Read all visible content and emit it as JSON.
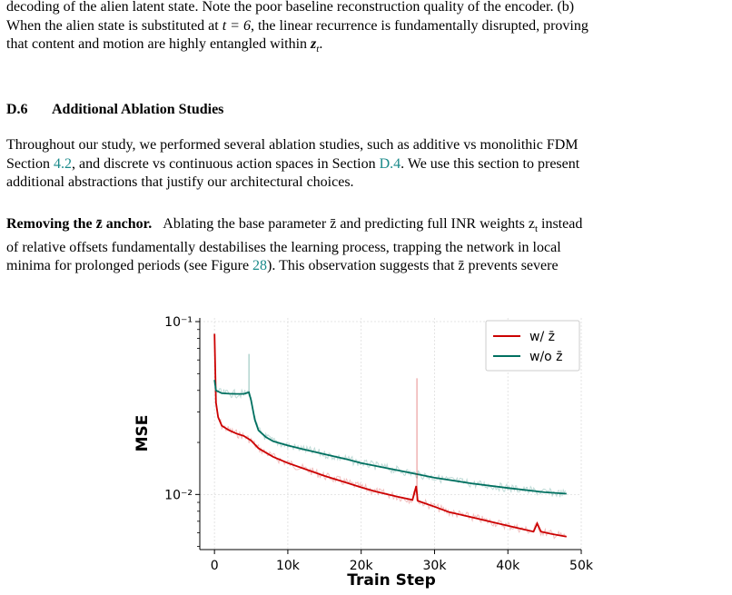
{
  "top_paragraph": {
    "line1": "decoding of the alien latent state. Note the poor baseline reconstruction quality of the encoder. (b)",
    "line2_a": "When the alien state is substituted at ",
    "line2_math": "t = 6",
    "line2_b": ", the linear recurrence is fundamentally disrupted, proving",
    "line3_a": "that content and motion are highly entangled within ",
    "line3_math": "z",
    "line3_sub": "t",
    "line3_b": "."
  },
  "section": {
    "number": "D.6",
    "title": "Additional Ablation Studies"
  },
  "paragraph_ablation": {
    "line1": "Throughout our study, we performed several ablation studies, such as additive vs monolithic FDM",
    "line2_a": "Section ",
    "line2_ref1": "4.2",
    "line2_b": ", and discrete vs continuous action spaces in Section ",
    "line2_ref2": "D.4",
    "line2_c": ". We use this section to present",
    "line3": "additional abstractions that justify our architectural choices."
  },
  "paragraph_anchor": {
    "bold_title": "Removing the z̄ anchor.",
    "line1_rest": "Ablating the base parameter z̄ and predicting full INR weights z",
    "line1_sub": "t",
    "line1_end": " instead",
    "line2": "of relative offsets fundamentally destabilises the learning process, trapping the network in local",
    "line3_a": "minima for prolonged periods (see Figure ",
    "line3_ref": "28",
    "line3_b": "). This observation suggests that z̄ prevents severe"
  },
  "chart_data": {
    "type": "line",
    "xlabel": "Train Step",
    "ylabel": "MSE",
    "yscale": "log",
    "xlim": [
      -2000,
      50000
    ],
    "ylim": [
      0.0048,
      0.105
    ],
    "x_ticks": [
      0,
      10000,
      20000,
      30000,
      40000,
      50000
    ],
    "x_tick_labels": [
      "0",
      "10k",
      "20k",
      "30k",
      "40k",
      "50k"
    ],
    "y_ticks": [
      0.01,
      0.1
    ],
    "y_tick_labels": [
      "10⁻²",
      "10⁻¹"
    ],
    "grid": true,
    "legend_position": "top-right",
    "series": [
      {
        "name": "w/ z̄",
        "color": "#cc0000",
        "x": [
          0,
          200,
          500,
          1000,
          2000,
          3000,
          4000,
          5000,
          6000,
          8000,
          10000,
          12000,
          15000,
          18000,
          20000,
          22000,
          25000,
          27000,
          27500,
          27700,
          28000,
          30000,
          32000,
          35000,
          38000,
          40000,
          42000,
          43500,
          44000,
          44500,
          46000,
          48000
        ],
        "y": [
          0.085,
          0.034,
          0.028,
          0.025,
          0.0235,
          0.0225,
          0.0218,
          0.0205,
          0.0185,
          0.0165,
          0.0152,
          0.0142,
          0.0128,
          0.0117,
          0.011,
          0.0104,
          0.0097,
          0.0093,
          0.0112,
          0.0092,
          0.0091,
          0.0085,
          0.0079,
          0.0074,
          0.0069,
          0.0066,
          0.0063,
          0.0061,
          0.0068,
          0.0061,
          0.0059,
          0.0057
        ]
      },
      {
        "name": "w/o z̄",
        "color": "#007060",
        "x": [
          0,
          200,
          1000,
          2000,
          3000,
          4000,
          4700,
          5000,
          5500,
          6000,
          7000,
          8000,
          10000,
          12000,
          15000,
          18000,
          20000,
          25000,
          30000,
          35000,
          40000,
          45000,
          48000
        ],
        "y": [
          0.046,
          0.04,
          0.0385,
          0.0383,
          0.0382,
          0.0382,
          0.039,
          0.035,
          0.027,
          0.0235,
          0.0215,
          0.0203,
          0.0192,
          0.0183,
          0.0171,
          0.016,
          0.0152,
          0.0138,
          0.0125,
          0.0116,
          0.0109,
          0.0103,
          0.0101
        ]
      }
    ],
    "shadow_spikes": [
      {
        "series": 0,
        "x": 27600,
        "y": 0.047
      },
      {
        "series": 1,
        "x": 4700,
        "y": 0.065
      }
    ]
  }
}
